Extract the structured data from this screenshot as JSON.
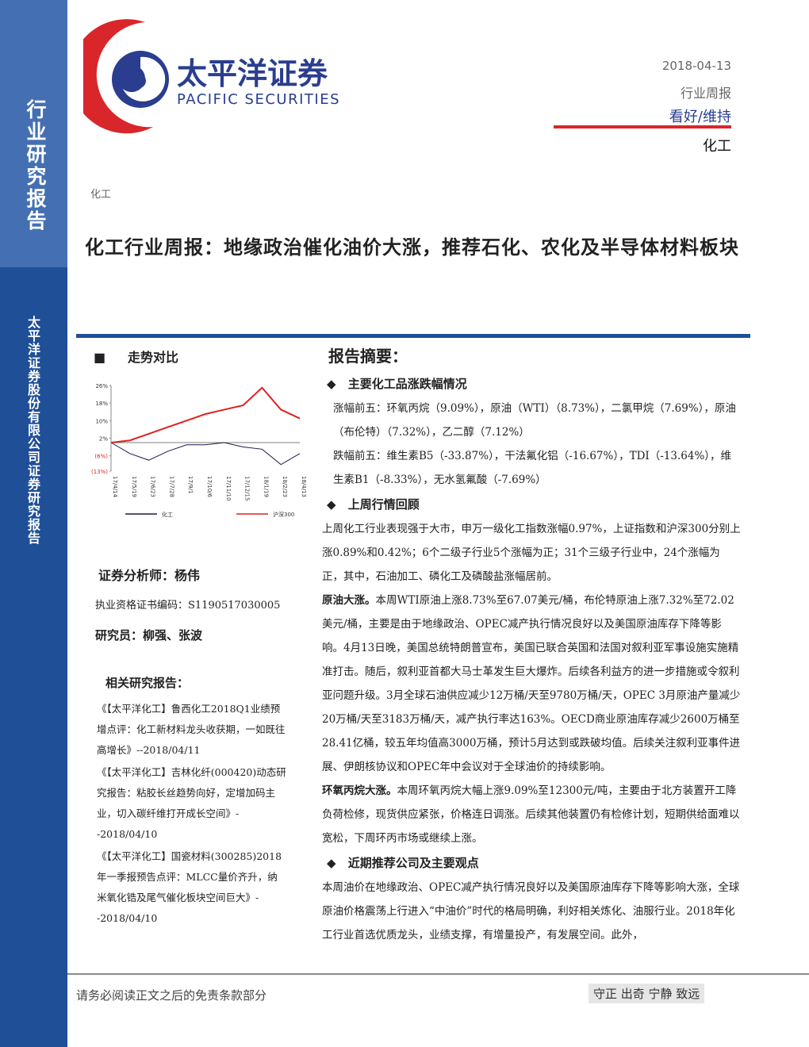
{
  "sidebar": {
    "category": "行业研究报告",
    "company": "太平洋证券股份有限公司证券研究报告"
  },
  "header": {
    "logo_cn": "太平洋证券",
    "logo_en": "PACIFIC SECURITIES",
    "date": "2018-04-13",
    "report_type": "行业周报",
    "rating": "看好/维持",
    "industry": "化工"
  },
  "breadcrumb": "化工",
  "title": "化工行业周报：地缘政治催化油价大涨，推荐石化、农化及半导体材料板块",
  "left": {
    "trend_title": "走势对比",
    "analyst": "证券分析师：杨伟",
    "certificate": "执业资格证书编码：S1190517030005",
    "researchers": "研究员：柳强、张波",
    "related_title": "相关研究报告：",
    "related": [
      "《【太平洋化工】鲁西化工2018Q1业绩预增点评：化工新材料龙头收获期，一如既往高增长》--2018/04/11",
      "《【太平洋化工】吉林化纤(000420)动态研究报告：粘胶长丝趋势向好，定增加码主业，切入碳纤维打开成长空间》--2018/04/10",
      "《【太平洋化工】国瓷材料(300285)2018年一季报预告点评：MLCC量价齐升，纳米氧化锆及尾气催化板块空间巨大》--2018/04/10"
    ]
  },
  "summary": {
    "title": "报告摘要：",
    "sections": [
      {
        "heading": "主要化工品涨跌幅情况",
        "paragraphs": [
          {
            "text": "涨幅前五：环氧丙烷（9.09%），原油（WTI）（8.73%），二氯甲烷（7.69%），原油（布伦特）（7.32%），乙二醇（7.12%）"
          },
          {
            "text": "跌幅前五：维生素B5（-33.87%），干法氟化铝（-16.67%），TDI（-13.64%），维生素B1（-8.33%），无水氢氟酸（-7.69%）"
          }
        ]
      },
      {
        "heading": "上周行情回顾",
        "paragraphs": [
          {
            "text": "上周化工行业表现强于大市，申万一级化工指数涨幅0.97%，上证指数和沪深300分别上涨0.89%和0.42%；6个二级子行业5个涨幅为正；31个三级子行业中，24个涨幅为正，其中，石油加工、磷化工及磷酸盐涨幅居前。"
          },
          {
            "lead": "原油大涨。",
            "text": "本周WTI原油上涨8.73%至67.07美元/桶，布伦特原油上涨7.32%至72.02美元/桶，主要是由于地缘政治、OPEC减产执行情况良好以及美国原油库存下降等影响。4月13日晚，美国总统特朗普宣布，美国已联合英国和法国对叙利亚军事设施实施精准打击。随后，叙利亚首都大马士革发生巨大爆炸。后续各利益方的进一步措施或令叙利亚问题升级。3月全球石油供应减少12万桶/天至9780万桶/天，OPEC 3月原油产量减少20万桶/天至3183万桶/天，减产执行率达163%。OECD商业原油库存减少2600万桶至28.41亿桶，较五年均值高3000万桶，预计5月达到或跌破均值。后续关注叙利亚事件进展、伊朗核协议和OPEC年中会议对于全球油价的持续影响。"
          },
          {
            "lead": "环氧丙烷大涨。",
            "text": "本周环氧丙烷大幅上涨9.09%至12300元/吨，主要由于北方装置开工降负荷检修，现货供应紧张，价格连日调涨。后续其他装置仍有检修计划，短期供给面难以宽松，下周环丙市场或继续上涨。"
          }
        ]
      },
      {
        "heading": "近期推荐公司及主要观点",
        "paragraphs": [
          {
            "text": "本周油价在地缘政治、OPEC减产执行情况良好以及美国原油库存下降等影响大涨，全球原油价格震荡上行进入“中油价”时代的格局明确，利好相关炼化、油服行业。2018年化工行业首选优质龙头，业绩支撑，有增量投产，有发展空间。此外，"
          }
        ]
      }
    ]
  },
  "footer": {
    "disclaimer": "请务必阅读正文之后的免责条款部分",
    "motto": "守正 出奇 宁静 致远"
  },
  "chart_data": {
    "type": "line",
    "categories": [
      "17/4/14",
      "17/5/19",
      "17/6/23",
      "17/7/28",
      "17/9/1",
      "17/10/6",
      "17/11/10",
      "17/12/15",
      "18/1/19",
      "18/2/23",
      "18/4/13"
    ],
    "series": [
      {
        "name": "化工",
        "color": "#1a1a4e",
        "values": [
          0,
          -5,
          -8,
          -4,
          -1,
          -1,
          0,
          -2,
          -3,
          -10,
          -5
        ]
      },
      {
        "name": "沪深300",
        "color": "#e02020",
        "values": [
          0,
          1,
          4,
          7,
          10,
          13,
          15,
          17,
          25,
          15,
          11
        ]
      }
    ],
    "ylim": [
      -13,
      26
    ],
    "yticks": [
      {
        "value": 26,
        "label": "26%"
      },
      {
        "value": 18,
        "label": "18%"
      },
      {
        "value": 10,
        "label": "10%"
      },
      {
        "value": 2,
        "label": "2%"
      },
      {
        "value": -6,
        "label": "(6%)"
      },
      {
        "value": -13,
        "label": "(13%)"
      }
    ],
    "grid": false
  }
}
